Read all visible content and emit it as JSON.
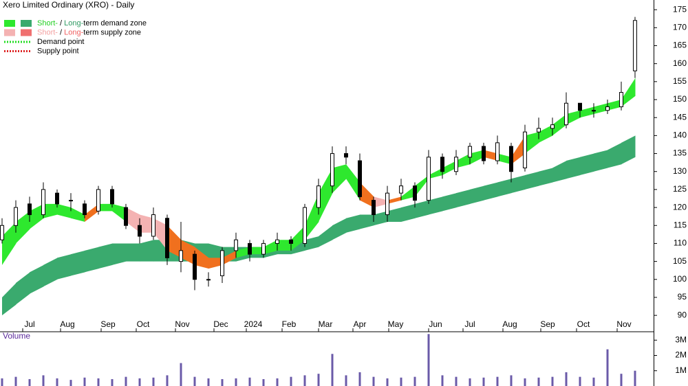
{
  "chart_data": [
    {
      "type": "candlestick",
      "title": "Xero Limited Ordinary (XRO) - Daily",
      "legend": [
        {
          "parts": [
            "Short-",
            " / ",
            "Long-",
            "term demand zone"
          ],
          "part_colors": [
            "#1fcf1f",
            "#000000",
            "#2e9a62",
            "#000000"
          ],
          "swatches": [
            "#2ee82e",
            "#3aaa6e"
          ],
          "style": "box"
        },
        {
          "parts": [
            "Short-",
            " / ",
            "Long-",
            "term supply zone"
          ],
          "part_colors": [
            "#f4a0a0",
            "#000000",
            "#f06060",
            "#000000"
          ],
          "swatches": [
            "#f4b2b2",
            "#f07070"
          ],
          "style": "box"
        },
        {
          "parts": [
            "Demand point"
          ],
          "part_colors": [
            "#000000"
          ],
          "swatches": [
            "#22dd22"
          ],
          "style": "dots"
        },
        {
          "parts": [
            "Supply point"
          ],
          "part_colors": [
            "#000000"
          ],
          "swatches": [
            "#dd2222"
          ],
          "style": "dots"
        }
      ],
      "xlim": [
        -0.15,
        47.35
      ],
      "xticks": [
        {
          "value": 1.5,
          "label": "Jul"
        },
        {
          "value": 4.25,
          "label": "Aug"
        },
        {
          "value": 7.2,
          "label": "Sep"
        },
        {
          "value": 9.75,
          "label": "Oct"
        },
        {
          "value": 12.6,
          "label": "Nov"
        },
        {
          "value": 15.4,
          "label": "Dec"
        },
        {
          "value": 17.75,
          "label": "2024"
        },
        {
          "value": 20.35,
          "label": "Feb"
        },
        {
          "value": 23,
          "label": "Mar"
        },
        {
          "value": 25.5,
          "label": "Apr"
        },
        {
          "value": 28.1,
          "label": "May"
        },
        {
          "value": 31,
          "label": "Jun"
        },
        {
          "value": 33.5,
          "label": "Jul"
        },
        {
          "value": 36.4,
          "label": "Aug"
        },
        {
          "value": 39.15,
          "label": "Sep"
        },
        {
          "value": 41.75,
          "label": "Oct"
        },
        {
          "value": 44.7,
          "label": "Nov"
        }
      ],
      "ylim": [
        86.4,
        177.7
      ],
      "yticks": [
        90,
        95,
        100,
        105,
        110,
        115,
        120,
        125,
        130,
        135,
        140,
        145,
        150,
        155,
        160,
        165,
        170,
        175
      ],
      "open": [
        111,
        115,
        121,
        118,
        124,
        122,
        121,
        119,
        125,
        120,
        115,
        112,
        117,
        105,
        107,
        100,
        101,
        108,
        110,
        107,
        110,
        111,
        110,
        120,
        126,
        135,
        133,
        122,
        118,
        124,
        126,
        122,
        134,
        130,
        134,
        137,
        133,
        137,
        131,
        141,
        142,
        143,
        149,
        147,
        147,
        148,
        158
      ],
      "high": [
        117,
        122,
        123,
        127,
        125,
        124,
        122,
        126,
        126,
        121,
        117,
        120,
        118,
        116,
        108,
        102,
        109,
        113,
        111,
        111,
        113,
        112,
        121,
        128,
        137,
        137,
        135,
        123,
        126,
        128,
        127,
        136,
        135,
        136,
        138,
        138,
        140,
        138,
        143,
        145,
        145,
        152,
        149,
        149,
        150,
        155,
        173
      ],
      "low": [
        110,
        113,
        116,
        117,
        120,
        119,
        117,
        118,
        120,
        114,
        110,
        111,
        104,
        102,
        97,
        98,
        99,
        106,
        105,
        106,
        108,
        108,
        109,
        118,
        124,
        132,
        122,
        116,
        116,
        122,
        120,
        121,
        128,
        129,
        132,
        132,
        132,
        127,
        130,
        139,
        140,
        142,
        145,
        145,
        146,
        147,
        156
      ],
      "close": [
        115,
        120,
        118,
        125,
        121,
        122,
        118,
        125,
        121,
        115,
        112,
        118,
        106,
        108,
        100,
        100,
        108,
        111,
        107,
        110,
        111,
        110,
        120,
        126,
        135,
        134,
        123,
        118,
        124,
        126,
        122,
        134,
        130,
        134,
        137,
        133,
        138,
        130,
        141,
        142,
        143,
        149,
        147,
        147,
        148,
        152,
        172
      ],
      "short_zone": {
        "upper": [
          112,
          116,
          119,
          121,
          121,
          120,
          118,
          121,
          121,
          120,
          118,
          117,
          115,
          111,
          109,
          106,
          106,
          108,
          109,
          109,
          111,
          111,
          115,
          124,
          131,
          132,
          127,
          123,
          122,
          123,
          126,
          129,
          131,
          133,
          135,
          136,
          135,
          134,
          140,
          141,
          143,
          146,
          147,
          148,
          149,
          150,
          156
        ],
        "lower": [
          104,
          110,
          114,
          117,
          118,
          117,
          116,
          119,
          119,
          116,
          113,
          113,
          108,
          106,
          104,
          103,
          104,
          106,
          107,
          107,
          108,
          108,
          111,
          116,
          124,
          128,
          122,
          120,
          121,
          122,
          123,
          128,
          129,
          131,
          132,
          134,
          133,
          132,
          135,
          138,
          140,
          143,
          145,
          146,
          147,
          148,
          151
        ],
        "colors": [
          "#2ee82e",
          "#2ee82e",
          "#2ee82e",
          "#2ee82e",
          "#2ee82e",
          "#2ee82e",
          "#f0701e",
          "#2ee82e",
          "#2ee82e",
          "#f4b2b2",
          "#f4b2b2",
          "#f4b2b2",
          "#f0701e",
          "#f0701e",
          "#f0701e",
          "#f0701e",
          "#f0701e",
          "#2ee82e",
          "#2ee82e",
          "#2ee82e",
          "#2ee82e",
          "#2ee82e",
          "#2ee82e",
          "#2ee82e",
          "#2ee82e",
          "#2ee82e",
          "#f0701e",
          "#f4b2b2",
          "#f0701e",
          "#2ee82e",
          "#2ee82e",
          "#2ee82e",
          "#2ee82e",
          "#2ee82e",
          "#2ee82e",
          "#f0701e",
          "#2ee82e",
          "#f0701e",
          "#2ee82e",
          "#2ee82e",
          "#2ee82e",
          "#2ee82e",
          "#2ee82e",
          "#2ee82e",
          "#2ee82e",
          "#2ee82e",
          "#2ee82e"
        ]
      },
      "long_zone": {
        "upper": [
          95,
          99,
          102,
          104,
          106,
          107,
          108,
          109,
          110,
          110,
          110,
          111,
          111,
          111,
          110,
          110,
          109,
          109,
          109,
          109,
          110,
          110,
          111,
          112,
          115,
          117,
          118,
          118,
          119,
          120,
          121,
          122,
          123,
          124,
          125,
          126,
          127,
          128,
          129,
          130,
          131,
          133,
          134,
          135,
          136,
          138,
          140
        ],
        "lower": [
          90,
          93,
          96,
          98,
          100,
          101,
          102,
          103,
          104,
          105,
          105,
          105,
          105,
          105,
          105,
          105,
          105,
          105,
          106,
          106,
          107,
          107,
          108,
          109,
          111,
          113,
          114,
          115,
          116,
          116,
          117,
          118,
          119,
          120,
          121,
          122,
          123,
          124,
          125,
          126,
          127,
          128,
          129,
          130,
          131,
          132,
          134
        ],
        "color": "#3aaa6e"
      }
    },
    {
      "type": "bar",
      "title": "Volume",
      "color": "#6a5aa8",
      "xlim": [
        -0.15,
        47.35
      ],
      "values": [
        500000,
        600000,
        450000,
        700000,
        500000,
        400000,
        550000,
        500000,
        450000,
        600000,
        500000,
        550000,
        700000,
        1500000,
        600000,
        500000,
        450000,
        500000,
        550000,
        450000,
        500000,
        600000,
        700000,
        800000,
        2100000,
        700000,
        900000,
        600000,
        500000,
        550000,
        600000,
        3400000,
        700000,
        600000,
        500000,
        550000,
        600000,
        700000,
        500000,
        550000,
        600000,
        900000,
        600000,
        550000,
        2400000,
        800000,
        1000000
      ],
      "ylim": [
        0,
        3550000
      ],
      "yticks": [
        {
          "value": 1000000,
          "label": "1M"
        },
        {
          "value": 2000000,
          "label": "2M"
        },
        {
          "value": 3000000,
          "label": "3M"
        }
      ]
    }
  ]
}
